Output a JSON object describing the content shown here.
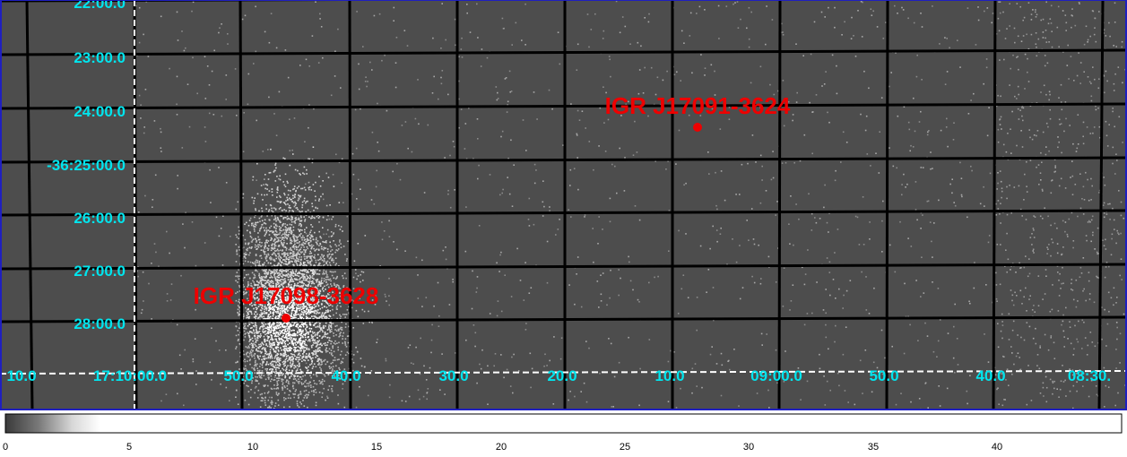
{
  "dec_labels": [
    "22:00.0",
    "23:00.0",
    "24:00.0",
    "-36:25:00.0",
    "26:00.0",
    "27:00.0",
    "28:00.0"
  ],
  "ra_labels": [
    "10.0",
    "17:10:00.0",
    "50.0",
    "40.0",
    "30.0",
    "20.0",
    "10.0",
    "09:00.0",
    "50.0",
    "40.0",
    "08:30."
  ],
  "sources": [
    {
      "name": "IGR J17091-3624"
    },
    {
      "name": "IGR J17098-3628"
    }
  ],
  "colorbar": {
    "ticks": [
      "0",
      "5",
      "10",
      "15",
      "20",
      "25",
      "30",
      "35",
      "40"
    ]
  },
  "colors": {
    "background": "#4d4d4d",
    "grid": "#000000",
    "axis_label": "#00e5ee",
    "source": "#ee0000",
    "frame": "#1f1fbf"
  }
}
